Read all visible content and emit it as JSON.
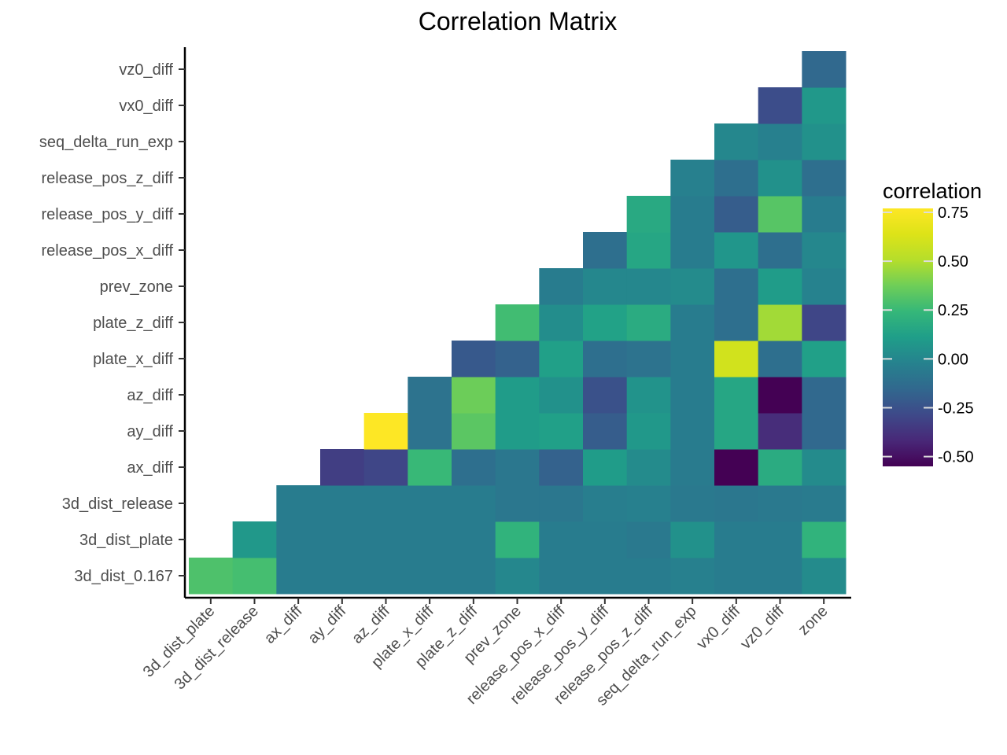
{
  "chart_data": {
    "type": "heatmap",
    "title": "Correlation Matrix",
    "xlabel": "",
    "ylabel": "",
    "x_categories": [
      "3d_dist_plate",
      "3d_dist_release",
      "ax_diff",
      "ay_diff",
      "az_diff",
      "plate_x_diff",
      "plate_z_diff",
      "prev_zone",
      "release_pos_x_diff",
      "release_pos_y_diff",
      "release_pos_z_diff",
      "seq_delta_run_exp",
      "vx0_diff",
      "vz0_diff",
      "zone"
    ],
    "y_categories": [
      "3d_dist_0.167",
      "3d_dist_plate",
      "3d_dist_release",
      "ax_diff",
      "ay_diff",
      "az_diff",
      "plate_x_diff",
      "plate_z_diff",
      "prev_zone",
      "release_pos_x_diff",
      "release_pos_y_diff",
      "release_pos_z_diff",
      "seq_delta_run_exp",
      "vx0_diff",
      "vz0_diff"
    ],
    "values": [
      [
        0.3,
        0.28,
        -0.05,
        -0.05,
        -0.05,
        -0.05,
        -0.05,
        0.0,
        -0.05,
        -0.05,
        -0.05,
        -0.03,
        -0.05,
        -0.05,
        0.02
      ],
      [
        null,
        0.08,
        -0.05,
        -0.05,
        -0.05,
        -0.05,
        -0.05,
        0.22,
        -0.05,
        -0.05,
        -0.07,
        0.05,
        -0.05,
        -0.05,
        0.22
      ],
      [
        null,
        null,
        -0.05,
        -0.05,
        -0.05,
        -0.05,
        -0.05,
        -0.08,
        -0.08,
        -0.04,
        -0.03,
        -0.07,
        -0.08,
        -0.07,
        -0.06
      ],
      [
        null,
        null,
        null,
        -0.33,
        -0.3,
        0.25,
        -0.12,
        -0.08,
        -0.18,
        0.1,
        0.02,
        -0.06,
        -0.55,
        0.18,
        0.02
      ],
      [
        null,
        null,
        null,
        null,
        0.77,
        -0.1,
        0.33,
        0.1,
        0.12,
        -0.2,
        0.08,
        -0.05,
        0.15,
        -0.4,
        -0.15
      ],
      [
        null,
        null,
        null,
        null,
        null,
        -0.1,
        0.37,
        0.1,
        0.05,
        -0.25,
        0.06,
        -0.05,
        0.15,
        -0.55,
        -0.15
      ],
      [
        null,
        null,
        null,
        null,
        null,
        null,
        -0.22,
        -0.18,
        0.12,
        -0.12,
        -0.1,
        -0.05,
        0.6,
        -0.12,
        0.12
      ],
      [
        null,
        null,
        null,
        null,
        null,
        null,
        null,
        0.27,
        0.03,
        0.13,
        0.18,
        -0.05,
        -0.12,
        0.47,
        -0.3
      ],
      [
        null,
        null,
        null,
        null,
        null,
        null,
        null,
        null,
        -0.05,
        0.0,
        0.0,
        0.02,
        -0.12,
        0.1,
        -0.02
      ],
      [
        null,
        null,
        null,
        null,
        null,
        null,
        null,
        null,
        null,
        -0.12,
        0.15,
        -0.05,
        0.07,
        -0.12,
        0.0
      ],
      [
        null,
        null,
        null,
        null,
        null,
        null,
        null,
        null,
        null,
        null,
        0.17,
        -0.05,
        -0.2,
        0.32,
        -0.05
      ],
      [
        null,
        null,
        null,
        null,
        null,
        null,
        null,
        null,
        null,
        null,
        null,
        -0.03,
        -0.12,
        0.05,
        -0.12
      ],
      [
        null,
        null,
        null,
        null,
        null,
        null,
        null,
        null,
        null,
        null,
        null,
        null,
        0.0,
        -0.03,
        0.05
      ],
      [
        null,
        null,
        null,
        null,
        null,
        null,
        null,
        null,
        null,
        null,
        null,
        null,
        null,
        -0.27,
        0.08
      ],
      [
        null,
        null,
        null,
        null,
        null,
        null,
        null,
        null,
        null,
        null,
        null,
        null,
        null,
        null,
        -0.15
      ]
    ],
    "colorscale": "viridis",
    "color_range": [
      -0.55,
      0.77
    ],
    "legend": {
      "title": "correlation",
      "ticks": [
        0.75,
        0.5,
        0.25,
        0.0,
        -0.25,
        -0.5
      ],
      "tick_labels": [
        "0.75",
        "0.50",
        "0.25",
        "0.00",
        "-0.25",
        "-0.50"
      ],
      "placement": "right"
    },
    "grid": false
  }
}
